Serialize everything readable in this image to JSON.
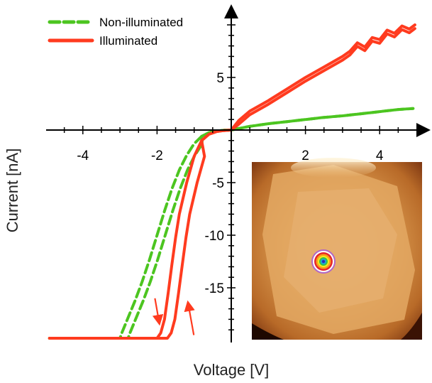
{
  "chart_data": {
    "type": "line",
    "title": "",
    "xlabel": "Voltage [V]",
    "ylabel": "Current [nA]",
    "xlim": [
      -5,
      5
    ],
    "ylim": [
      -20,
      11
    ],
    "x_ticks": [
      -4,
      -2,
      2,
      4
    ],
    "y_ticks": [
      5,
      -5,
      -10,
      -15
    ],
    "grid": false,
    "legend_position": "top-left",
    "series": [
      {
        "name": "Non-illuminated",
        "style": "dashed",
        "color": "#4cc520",
        "x": [
          -4.9,
          -3.0,
          -2.95,
          -2.8,
          -2.6,
          -2.4,
          -2.2,
          -2.0,
          -1.8,
          -1.6,
          -1.4,
          -1.2,
          -1.0,
          -0.8,
          -0.6,
          -0.4,
          -0.2,
          0.0,
          0.2,
          0.5,
          1.0,
          1.5,
          2.0,
          2.5,
          3.0,
          3.5,
          4.0,
          4.5,
          4.9
        ],
        "y": [
          -19.8,
          -19.8,
          -19.3,
          -18.0,
          -16.3,
          -14.4,
          -12.3,
          -10.0,
          -7.7,
          -5.6,
          -3.8,
          -2.4,
          -1.3,
          -0.6,
          -0.25,
          -0.1,
          -0.02,
          0.0,
          0.15,
          0.35,
          0.6,
          0.8,
          1.0,
          1.2,
          1.35,
          1.55,
          1.75,
          1.95,
          2.05
        ]
      },
      {
        "name": "Illuminated",
        "style": "solid",
        "color": "#ff3b1f",
        "x": [
          -4.9,
          -2.0,
          -1.9,
          -1.8,
          -1.7,
          -1.6,
          -1.5,
          -1.4,
          -1.2,
          -1.0,
          -0.8,
          -0.6,
          -0.4,
          -0.2,
          0.0,
          0.2,
          0.5,
          1.0,
          1.5,
          2.0,
          2.5,
          3.0,
          3.2,
          3.4,
          3.6,
          3.8,
          4.0,
          4.2,
          4.4,
          4.6,
          4.8,
          4.95
        ],
        "y": [
          -19.8,
          -19.8,
          -19.3,
          -18.0,
          -15.5,
          -12.8,
          -10.2,
          -8.0,
          -5.0,
          -2.5,
          -1.0,
          -0.4,
          -0.15,
          -0.05,
          0.0,
          0.9,
          1.8,
          2.8,
          3.9,
          5.0,
          6.0,
          7.0,
          7.5,
          8.3,
          7.9,
          8.8,
          8.6,
          9.5,
          9.2,
          9.9,
          9.6,
          10.0
        ]
      }
    ],
    "annotations": [
      {
        "type": "arrow",
        "direction": "down",
        "color": "#ff3b1f",
        "x": -2.0,
        "y_from": -16.0,
        "y_to": -18.3
      },
      {
        "type": "arrow",
        "direction": "up",
        "color": "#ff3b1f",
        "x": -1.2,
        "y_from": -19.5,
        "y_to": -16.5
      }
    ],
    "inset": {
      "kind": "afm-image",
      "description_icon": "afm-topography-image",
      "target_marker": "concentric-rings-icon"
    }
  }
}
